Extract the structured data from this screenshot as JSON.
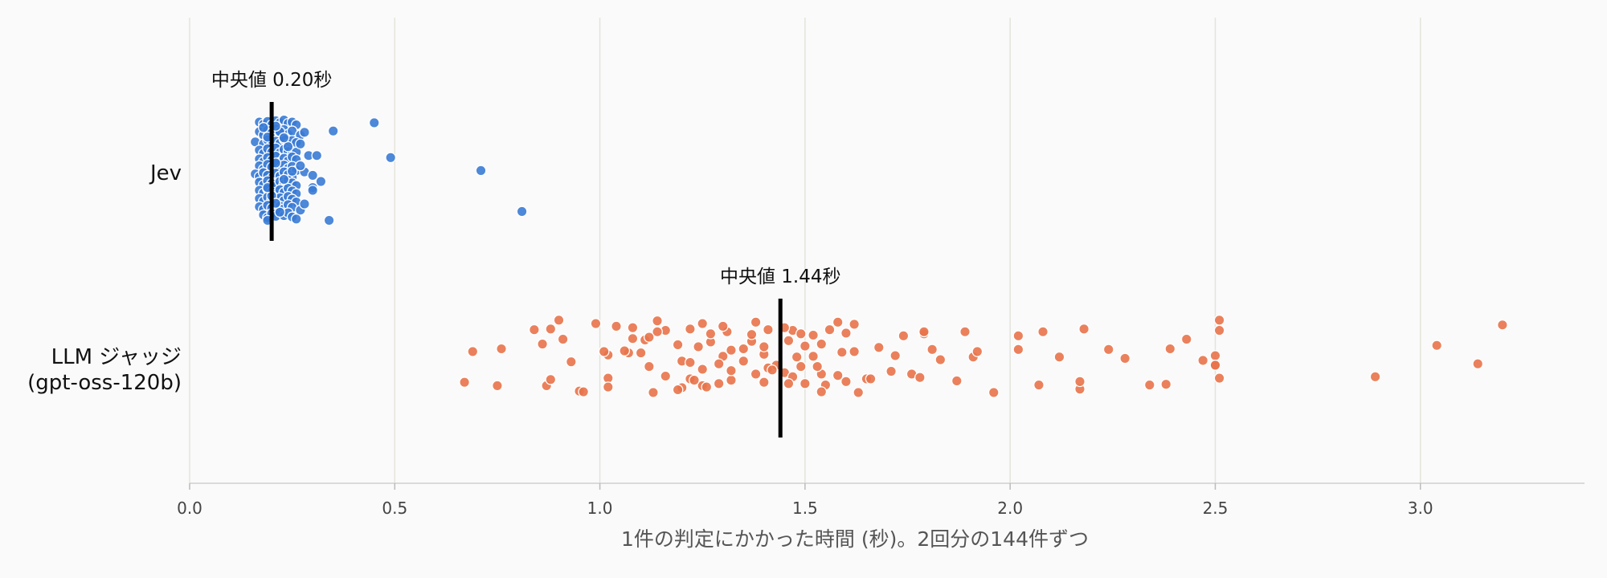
{
  "chart_data": {
    "type": "scatter",
    "xlabel": "1件の判定にかかった時間 (秒)。2回分の144件ずつ",
    "ylabel": "",
    "xlim": [
      0,
      3.4
    ],
    "xticks": [
      "0.0",
      "0.5",
      "1.0",
      "1.5",
      "2.0",
      "2.5",
      "3.0"
    ],
    "grid": "vertical",
    "categories": [
      "Jev",
      "LLM ジャッジ\n(gpt-oss-120b)"
    ],
    "category_lines": [
      [
        "Jev"
      ],
      [
        "LLM ジャッジ",
        "(gpt-oss-120b)"
      ]
    ],
    "series": [
      {
        "category": "Jev",
        "color": "#3a7bd5",
        "median": 0.2,
        "median_label": "中央値 0.20秒",
        "points": [
          [
            0.17,
            0.74
          ],
          [
            0.18,
            0.71
          ],
          [
            0.19,
            0.75
          ],
          [
            0.2,
            0.7
          ],
          [
            0.21,
            0.76
          ],
          [
            0.22,
            0.73
          ],
          [
            0.23,
            0.77
          ],
          [
            0.24,
            0.72
          ],
          [
            0.25,
            0.74
          ],
          [
            0.26,
            0.7
          ],
          [
            0.17,
            0.6
          ],
          [
            0.18,
            0.55
          ],
          [
            0.19,
            0.62
          ],
          [
            0.2,
            0.58
          ],
          [
            0.21,
            0.64
          ],
          [
            0.22,
            0.57
          ],
          [
            0.23,
            0.63
          ],
          [
            0.24,
            0.56
          ],
          [
            0.25,
            0.61
          ],
          [
            0.27,
            0.55
          ],
          [
            0.16,
            0.45
          ],
          [
            0.18,
            0.42
          ],
          [
            0.19,
            0.48
          ],
          [
            0.2,
            0.4
          ],
          [
            0.21,
            0.46
          ],
          [
            0.22,
            0.43
          ],
          [
            0.23,
            0.49
          ],
          [
            0.24,
            0.41
          ],
          [
            0.25,
            0.47
          ],
          [
            0.26,
            0.44
          ],
          [
            0.17,
            0.33
          ],
          [
            0.18,
            0.28
          ],
          [
            0.19,
            0.35
          ],
          [
            0.2,
            0.3
          ],
          [
            0.21,
            0.36
          ],
          [
            0.22,
            0.29
          ],
          [
            0.23,
            0.34
          ],
          [
            0.24,
            0.31
          ],
          [
            0.25,
            0.27
          ],
          [
            0.26,
            0.3
          ],
          [
            0.17,
            0.2
          ],
          [
            0.18,
            0.16
          ],
          [
            0.19,
            0.22
          ],
          [
            0.2,
            0.18
          ],
          [
            0.21,
            0.24
          ],
          [
            0.22,
            0.15
          ],
          [
            0.23,
            0.21
          ],
          [
            0.24,
            0.17
          ],
          [
            0.25,
            0.23
          ],
          [
            0.26,
            0.19
          ],
          [
            0.17,
            0.1
          ],
          [
            0.18,
            0.05
          ],
          [
            0.19,
            0.12
          ],
          [
            0.2,
            0.08
          ],
          [
            0.21,
            0.13
          ],
          [
            0.22,
            0.04
          ],
          [
            0.23,
            0.11
          ],
          [
            0.24,
            0.06
          ],
          [
            0.25,
            0.09
          ],
          [
            0.26,
            0.03
          ],
          [
            0.16,
            -0.02
          ],
          [
            0.17,
            -0.06
          ],
          [
            0.18,
            0.0
          ],
          [
            0.19,
            -0.04
          ],
          [
            0.2,
            -0.08
          ],
          [
            0.21,
            -0.01
          ],
          [
            0.22,
            -0.05
          ],
          [
            0.23,
            0.01
          ],
          [
            0.24,
            -0.03
          ],
          [
            0.25,
            -0.07
          ],
          [
            0.17,
            -0.14
          ],
          [
            0.18,
            -0.18
          ],
          [
            0.19,
            -0.12
          ],
          [
            0.2,
            -0.16
          ],
          [
            0.21,
            -0.2
          ],
          [
            0.22,
            -0.13
          ],
          [
            0.23,
            -0.17
          ],
          [
            0.24,
            -0.11
          ],
          [
            0.25,
            -0.15
          ],
          [
            0.26,
            -0.19
          ],
          [
            0.17,
            -0.26
          ],
          [
            0.18,
            -0.3
          ],
          [
            0.19,
            -0.24
          ],
          [
            0.2,
            -0.28
          ],
          [
            0.21,
            -0.32
          ],
          [
            0.22,
            -0.25
          ],
          [
            0.23,
            -0.29
          ],
          [
            0.24,
            -0.23
          ],
          [
            0.25,
            -0.27
          ],
          [
            0.26,
            -0.31
          ],
          [
            0.17,
            -0.38
          ],
          [
            0.18,
            -0.42
          ],
          [
            0.19,
            -0.36
          ],
          [
            0.2,
            -0.4
          ],
          [
            0.21,
            -0.44
          ],
          [
            0.22,
            -0.37
          ],
          [
            0.23,
            -0.41
          ],
          [
            0.24,
            -0.35
          ],
          [
            0.25,
            -0.39
          ],
          [
            0.26,
            -0.43
          ],
          [
            0.17,
            -0.5
          ],
          [
            0.18,
            -0.54
          ],
          [
            0.19,
            -0.48
          ],
          [
            0.2,
            -0.52
          ],
          [
            0.21,
            -0.56
          ],
          [
            0.22,
            -0.49
          ],
          [
            0.23,
            -0.53
          ],
          [
            0.24,
            -0.47
          ],
          [
            0.25,
            -0.51
          ],
          [
            0.27,
            -0.55
          ],
          [
            0.18,
            -0.62
          ],
          [
            0.19,
            -0.66
          ],
          [
            0.2,
            -0.6
          ],
          [
            0.21,
            -0.64
          ],
          [
            0.22,
            -0.58
          ],
          [
            0.23,
            -0.63
          ],
          [
            0.24,
            -0.59
          ],
          [
            0.25,
            -0.65
          ],
          [
            0.28,
            0.59
          ],
          [
            0.27,
            0.42
          ],
          [
            0.29,
            0.25
          ],
          [
            0.28,
            0.01
          ],
          [
            0.3,
            -0.22
          ],
          [
            0.28,
            -0.46
          ],
          [
            0.18,
            0.66
          ],
          [
            0.22,
            0.6
          ],
          [
            0.24,
            0.38
          ],
          [
            0.21,
            0.14
          ],
          [
            0.23,
            -0.1
          ],
          [
            0.2,
            -0.34
          ],
          [
            0.22,
            -0.58
          ],
          [
            0.19,
            0.52
          ],
          [
            0.25,
            0.02
          ],
          [
            0.21,
            -0.45
          ],
          [
            0.31,
            0.25
          ],
          [
            0.3,
            -0.04
          ],
          [
            0.32,
            -0.13
          ],
          [
            0.3,
            -0.26
          ],
          [
            0.35,
            0.61
          ],
          [
            0.45,
            0.73
          ],
          [
            0.49,
            0.22
          ],
          [
            0.34,
            -0.7
          ],
          [
            0.71,
            0.03
          ],
          [
            0.81,
            -0.57
          ],
          [
            0.19,
            -0.7
          ],
          [
            0.21,
            0.68
          ],
          [
            0.26,
            -0.68
          ],
          [
            0.23,
            0.51
          ],
          [
            0.19,
            -0.22
          ],
          [
            0.27,
            0.1
          ]
        ]
      },
      {
        "category": "LLM ジャッジ\n(gpt-oss-120b)",
        "color": "#e8734a",
        "median": 1.44,
        "median_label": "中央値 1.44秒",
        "points": [
          [
            0.9,
            0.72
          ],
          [
            0.99,
            0.67
          ],
          [
            1.14,
            0.71
          ],
          [
            1.25,
            0.67
          ],
          [
            1.38,
            0.69
          ],
          [
            1.58,
            0.69
          ],
          [
            1.62,
            0.66
          ],
          [
            2.51,
            0.72
          ],
          [
            2.51,
            0.57
          ],
          [
            3.2,
            0.65
          ],
          [
            0.84,
            0.58
          ],
          [
            0.88,
            0.59
          ],
          [
            1.04,
            0.63
          ],
          [
            1.08,
            0.61
          ],
          [
            1.16,
            0.57
          ],
          [
            1.22,
            0.59
          ],
          [
            1.31,
            0.55
          ],
          [
            1.41,
            0.58
          ],
          [
            1.47,
            0.57
          ],
          [
            1.56,
            0.58
          ],
          [
            1.74,
            0.49
          ],
          [
            1.79,
            0.52
          ],
          [
            1.89,
            0.55
          ],
          [
            2.02,
            0.49
          ],
          [
            2.08,
            0.55
          ],
          [
            2.18,
            0.59
          ],
          [
            2.43,
            0.44
          ],
          [
            3.04,
            0.35
          ],
          [
            0.76,
            0.3
          ],
          [
            0.86,
            0.37
          ],
          [
            0.91,
            0.44
          ],
          [
            1.02,
            0.21
          ],
          [
            1.08,
            0.45
          ],
          [
            1.11,
            0.43
          ],
          [
            1.19,
            0.36
          ],
          [
            1.27,
            0.4
          ],
          [
            1.32,
            0.28
          ],
          [
            1.37,
            0.41
          ],
          [
            1.46,
            0.42
          ],
          [
            1.5,
            0.34
          ],
          [
            1.54,
            0.37
          ],
          [
            1.59,
            0.25
          ],
          [
            1.68,
            0.32
          ],
          [
            1.81,
            0.29
          ],
          [
            1.91,
            0.18
          ],
          [
            2.02,
            0.29
          ],
          [
            2.24,
            0.29
          ],
          [
            2.39,
            0.3
          ],
          [
            0.69,
            0.26
          ],
          [
            0.93,
            0.11
          ],
          [
            1.01,
            0.26
          ],
          [
            1.07,
            0.24
          ],
          [
            1.1,
            0.24
          ],
          [
            1.2,
            0.12
          ],
          [
            1.24,
            0.33
          ],
          [
            1.3,
            0.19
          ],
          [
            1.35,
            0.3
          ],
          [
            1.4,
            0.22
          ],
          [
            1.52,
            0.19
          ],
          [
            1.62,
            0.26
          ],
          [
            1.72,
            0.2
          ],
          [
            1.83,
            0.14
          ],
          [
            1.92,
            0.26
          ],
          [
            2.12,
            0.18
          ],
          [
            2.28,
            0.16
          ],
          [
            2.5,
            0.2
          ],
          [
            2.47,
            0.13
          ],
          [
            0.67,
            -0.19
          ],
          [
            0.75,
            -0.24
          ],
          [
            0.87,
            -0.24
          ],
          [
            0.88,
            -0.15
          ],
          [
            0.95,
            -0.32
          ],
          [
            1.02,
            -0.13
          ],
          [
            1.02,
            -0.26
          ],
          [
            1.13,
            -0.34
          ],
          [
            1.16,
            -0.1
          ],
          [
            1.2,
            -0.27
          ],
          [
            1.22,
            -0.14
          ],
          [
            1.25,
            -0.24
          ],
          [
            1.29,
            -0.21
          ],
          [
            1.32,
            -0.16
          ],
          [
            1.4,
            -0.19
          ],
          [
            1.45,
            -0.05
          ],
          [
            1.49,
            0.04
          ],
          [
            1.54,
            -0.07
          ],
          [
            1.55,
            -0.23
          ],
          [
            1.6,
            -0.18
          ],
          [
            1.65,
            -0.14
          ],
          [
            1.71,
            -0.03
          ],
          [
            1.76,
            -0.07
          ],
          [
            1.78,
            -0.12
          ],
          [
            1.87,
            -0.17
          ],
          [
            1.96,
            -0.34
          ],
          [
            2.07,
            -0.23
          ],
          [
            2.17,
            -0.29
          ],
          [
            2.17,
            -0.18
          ],
          [
            2.34,
            -0.23
          ],
          [
            2.38,
            -0.22
          ],
          [
            2.5,
            0.06
          ],
          [
            2.51,
            -0.13
          ],
          [
            2.89,
            -0.11
          ],
          [
            3.14,
            0.08
          ],
          [
            1.26,
            -0.26
          ],
          [
            1.38,
            -0.07
          ],
          [
            1.41,
            0.02
          ],
          [
            1.47,
            -0.11
          ],
          [
            1.53,
            0.04
          ],
          [
            1.58,
            -0.09
          ],
          [
            1.63,
            -0.34
          ],
          [
            1.35,
            0.12
          ],
          [
            1.43,
            0.06
          ],
          [
            1.12,
            0.04
          ],
          [
            1.23,
            -0.16
          ],
          [
            0.96,
            -0.33
          ],
          [
            1.54,
            -0.33
          ],
          [
            1.29,
            0.08
          ],
          [
            1.66,
            -0.14
          ],
          [
            1.5,
            -0.21
          ],
          [
            1.32,
            -0.02
          ],
          [
            1.42,
            -0.01
          ],
          [
            1.25,
            0.0
          ],
          [
            1.19,
            -0.3
          ],
          [
            1.3,
            0.63
          ],
          [
            1.45,
            0.61
          ],
          [
            1.6,
            0.53
          ],
          [
            1.79,
            0.55
          ],
          [
            1.22,
            0.1
          ],
          [
            1.49,
            0.52
          ],
          [
            1.37,
            0.51
          ],
          [
            2.5,
            0.06
          ],
          [
            1.4,
            0.33
          ],
          [
            1.48,
            0.18
          ],
          [
            1.52,
            0.5
          ],
          [
            1.14,
            0.55
          ],
          [
            1.06,
            0.27
          ],
          [
            1.12,
            0.47
          ],
          [
            1.46,
            -0.21
          ],
          [
            1.27,
            0.52
          ]
        ]
      }
    ]
  }
}
